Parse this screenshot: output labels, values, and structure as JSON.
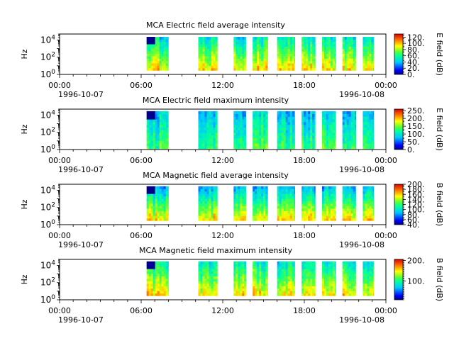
{
  "chart_data": [
    {
      "type": "heatmap",
      "title": "MCA  Electric field average intensity",
      "ylabel": "Hz",
      "colorbar_label": "E field (dB)",
      "colorbar_range": [
        0,
        130
      ],
      "colorbar_ticks": [
        "0.",
        "20.",
        "40.",
        "60.",
        "80.",
        "100.",
        "120."
      ],
      "colorbar_tick_values": [
        0,
        20,
        40,
        60,
        80,
        100,
        120
      ]
    },
    {
      "type": "heatmap",
      "title": "MCA  Electric field maximum intensity",
      "ylabel": "Hz",
      "colorbar_label": "E field (dB)",
      "colorbar_range": [
        0,
        260
      ],
      "colorbar_ticks": [
        "0.",
        "50.",
        "100.",
        "150.",
        "200.",
        "250."
      ],
      "colorbar_tick_values": [
        0,
        50,
        100,
        150,
        200,
        250
      ]
    },
    {
      "type": "heatmap",
      "title": "MCA  Magnetic field average intensity",
      "ylabel": "Hz",
      "colorbar_label": "B field (dB)",
      "colorbar_range": [
        40,
        200
      ],
      "colorbar_ticks": [
        "40.",
        "60.",
        "80.",
        "100.",
        "120.",
        "140.",
        "160.",
        "180.",
        "200."
      ],
      "colorbar_tick_values": [
        40,
        60,
        80,
        100,
        120,
        140,
        160,
        180,
        200
      ]
    },
    {
      "type": "heatmap",
      "title": "MCA  Magnetic field maximum intensity",
      "ylabel": "Hz",
      "colorbar_label": "B field (dB)",
      "colorbar_range": [
        10,
        205
      ],
      "colorbar_ticks": [
        "100.",
        "200."
      ],
      "colorbar_tick_values": [
        100,
        200
      ]
    }
  ],
  "x_axis": {
    "range_hours": [
      0,
      24
    ],
    "tick_labels": [
      "00:00",
      "06:00",
      "12:00",
      "18:00",
      "00:00"
    ],
    "tick_hours": [
      0,
      6,
      12,
      18,
      24
    ],
    "start_date": "1996-10-07",
    "end_date": "1996-10-08"
  },
  "y_axis": {
    "scale": "log",
    "range": [
      1,
      50000
    ],
    "ticks": [
      1,
      100,
      10000
    ],
    "tick_exponents": [
      "0",
      "2",
      "4"
    ]
  },
  "data_intervals_hours": [
    [
      6.4,
      8.0
    ],
    [
      10.2,
      11.6
    ],
    [
      12.8,
      13.7
    ],
    [
      14.2,
      15.3
    ],
    [
      16.0,
      17.3
    ],
    [
      17.8,
      18.8
    ],
    [
      19.3,
      20.3
    ],
    [
      20.8,
      21.8
    ],
    [
      22.3,
      23.1
    ]
  ]
}
